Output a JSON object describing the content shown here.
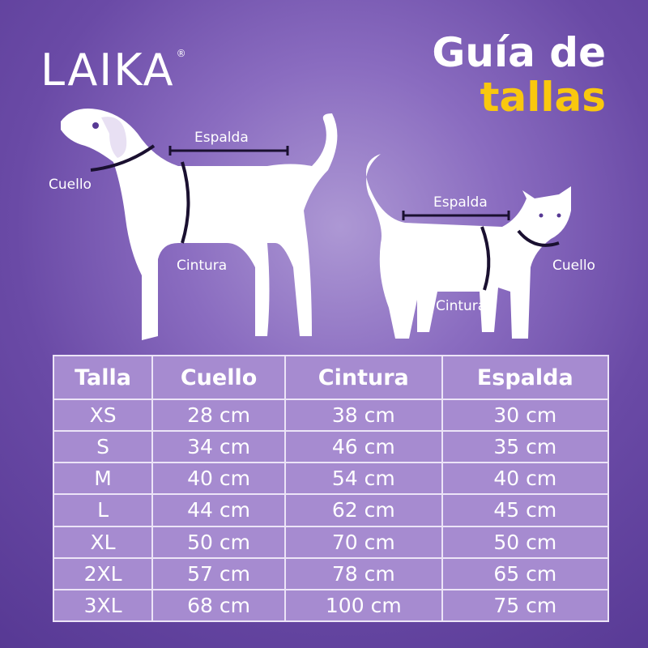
{
  "brand": {
    "name": "LAIKA",
    "mark": "®"
  },
  "title": {
    "line1": "Guía de",
    "line2": "tallas"
  },
  "colors": {
    "background": "#6a4aa6",
    "accent": "#f9c80e",
    "table": "#a68bd0"
  },
  "dog_labels": {
    "back": "Espalda",
    "neck": "Cuello",
    "waist": "Cintura"
  },
  "cat_labels": {
    "back": "Espalda",
    "neck": "Cuello",
    "waist": "Cintura"
  },
  "table": {
    "headers": [
      "Talla",
      "Cuello",
      "Cintura",
      "Espalda"
    ],
    "rows": [
      [
        "XS",
        "28 cm",
        "38 cm",
        "30 cm"
      ],
      [
        "S",
        "34 cm",
        "46 cm",
        "35 cm"
      ],
      [
        "M",
        "40 cm",
        "54 cm",
        "40 cm"
      ],
      [
        "L",
        "44 cm",
        "62 cm",
        "45 cm"
      ],
      [
        "XL",
        "50 cm",
        "70 cm",
        "50 cm"
      ],
      [
        "2XL",
        "57 cm",
        "78 cm",
        "65 cm"
      ],
      [
        "3XL",
        "68 cm",
        "100 cm",
        "75 cm"
      ]
    ]
  }
}
